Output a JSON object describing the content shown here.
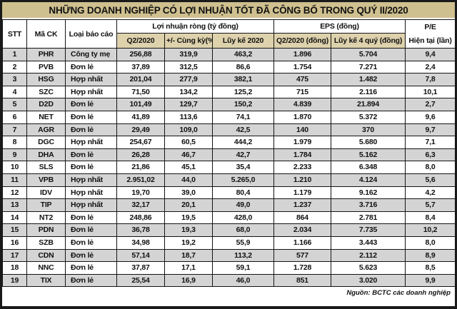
{
  "title": "NHỮNG DOANH NGHIỆP CÓ LỢI NHUẬN TỐT ĐÃ CÔNG BỐ TRONG QUÝ II/2020",
  "footer": {
    "source": "Nguồn: BCTC các doanh nghiệp"
  },
  "colors": {
    "frame_bg": "#1a1a1a",
    "title_bg": "#cfc08f",
    "subheader_bg": "#ded2ad",
    "row_bg": "#ffffff",
    "row_alt_bg": "#d4d4d4",
    "border": "#141414",
    "text": "#111111"
  },
  "table": {
    "headers": {
      "stt": "STT",
      "ticker": "Mã CK",
      "report_type": "Loại báo cáo",
      "net_profit_group": "Lợi nhuận ròng (tỷ đồng)",
      "eps_group": "EPS (đồng)",
      "q2_2020": "Q2/2020",
      "yoy_change": "+/- Cùng kỳ(%)",
      "ytd_2020": "Lũy kế 2020",
      "eps_q2": "Q2/2020 (đồng)",
      "eps_4q": "Lũy kế 4 quý (đồng)",
      "pe_line1": "P/E",
      "pe_line2": "Hiện tại (lần)"
    }
  },
  "chart_data": {
    "type": "table",
    "title": "NHỮNG DOANH NGHIỆP CÓ LỢI NHUẬN TỐT ĐÃ CÔNG BỐ TRONG QUÝ II/2020",
    "columns": [
      "STT",
      "Mã CK",
      "Loại báo cáo",
      "Lợi nhuận ròng (tỷ đồng) - Q2/2020",
      "Lợi nhuận ròng (tỷ đồng) - +/- Cùng kỳ(%)",
      "Lợi nhuận ròng (tỷ đồng) - Lũy kế 2020",
      "EPS (đồng) - Q2/2020 (đồng)",
      "EPS (đồng) - Lũy kế 4 quý (đồng)",
      "P/E Hiện tại (lần)"
    ],
    "rows": [
      [
        "1",
        "PHR",
        "Công ty mẹ",
        "256,88",
        "319,9",
        "463,2",
        "1.896",
        "5.704",
        "9,4"
      ],
      [
        "2",
        "PVB",
        "Đơn lẻ",
        "37,89",
        "312,5",
        "86,6",
        "1.754",
        "7.271",
        "2,4"
      ],
      [
        "3",
        "HSG",
        "Hợp nhất",
        "201,04",
        "277,9",
        "382,1",
        "475",
        "1.482",
        "7,8"
      ],
      [
        "4",
        "SZC",
        "Hợp nhất",
        "71,50",
        "134,2",
        "125,2",
        "715",
        "2.116",
        "10,1"
      ],
      [
        "5",
        "D2D",
        "Đơn lẻ",
        "101,49",
        "129,7",
        "150,2",
        "4.839",
        "21.894",
        "2,7"
      ],
      [
        "6",
        "NET",
        "Đơn lẻ",
        "41,89",
        "113,6",
        "74,1",
        "1.870",
        "5.372",
        "9,6"
      ],
      [
        "7",
        "AGR",
        "Đơn lẻ",
        "29,49",
        "109,0",
        "42,5",
        "140",
        "370",
        "9,7"
      ],
      [
        "8",
        "DGC",
        "Hợp nhất",
        "254,67",
        "60,5",
        "444,2",
        "1.979",
        "5.680",
        "7,1"
      ],
      [
        "9",
        "DHA",
        "Đơn lẻ",
        "26,28",
        "46,7",
        "42,7",
        "1.784",
        "5.162",
        "6,3"
      ],
      [
        "10",
        "SLS",
        "Đơn lẻ",
        "21,86",
        "45,1",
        "35,4",
        "2.233",
        "6.348",
        "8,0"
      ],
      [
        "11",
        "VPB",
        "Hợp nhất",
        "2.951,02",
        "44,0",
        "5.265,0",
        "1.210",
        "4.124",
        "5,6"
      ],
      [
        "12",
        "IDV",
        "Hợp nhất",
        "19,70",
        "39,0",
        "80,4",
        "1.179",
        "9.162",
        "4,2"
      ],
      [
        "13",
        "TIP",
        "Hợp nhất",
        "32,17",
        "20,1",
        "49,0",
        "1.237",
        "3.716",
        "5,7"
      ],
      [
        "14",
        "NT2",
        "Đơn lẻ",
        "248,86",
        "19,5",
        "428,0",
        "864",
        "2.781",
        "8,4"
      ],
      [
        "15",
        "PDN",
        "Đơn lẻ",
        "36,78",
        "19,3",
        "68,0",
        "2.034",
        "7.735",
        "10,2"
      ],
      [
        "16",
        "SZB",
        "Đơn lẻ",
        "34,98",
        "19,2",
        "55,9",
        "1.166",
        "3.443",
        "8,0"
      ],
      [
        "17",
        "CDN",
        "Đơn lẻ",
        "57,14",
        "18,7",
        "113,2",
        "577",
        "2.112",
        "8,9"
      ],
      [
        "18",
        "NNC",
        "Đơn lẻ",
        "37,87",
        "17,1",
        "59,1",
        "1.728",
        "5.623",
        "8,5"
      ],
      [
        "19",
        "TIX",
        "Đơn lẻ",
        "25,54",
        "16,9",
        "46,0",
        "851",
        "3.020",
        "9,9"
      ]
    ]
  }
}
